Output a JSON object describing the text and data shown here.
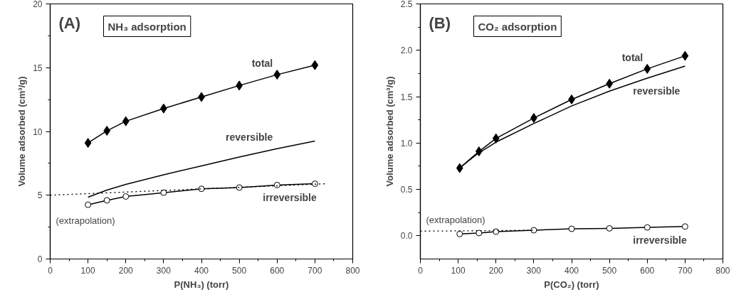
{
  "chart_data": [
    {
      "type": "line",
      "title": "(A)",
      "subtitle": "NH₃ adsorption",
      "xlabel": "P(NH₃) (torr)",
      "ylabel": "Volume adsorbed (cm³/g)",
      "xlim": [
        0,
        800
      ],
      "xticks": [
        0,
        100,
        200,
        300,
        400,
        500,
        600,
        700,
        800
      ],
      "ylim": [
        0,
        20
      ],
      "yticks": [
        0,
        5,
        10,
        15,
        20
      ],
      "grid": false,
      "series": [
        {
          "name": "total",
          "color": "#000000",
          "marker": "diamond",
          "x": [
            100,
            150,
            200,
            300,
            400,
            500,
            600,
            700
          ],
          "values": [
            9.1,
            10.05,
            10.8,
            11.8,
            12.7,
            13.6,
            14.45,
            15.2
          ]
        },
        {
          "name": "reversible",
          "color": "#000000",
          "marker": "none",
          "x": [
            100,
            150,
            200,
            300,
            400,
            500,
            600,
            700
          ],
          "values": [
            4.85,
            5.4,
            5.85,
            6.6,
            7.3,
            8.0,
            8.65,
            9.25
          ]
        },
        {
          "name": "irreversible",
          "color": "#000000",
          "marker": "circle",
          "x": [
            100,
            150,
            200,
            300,
            400,
            500,
            600,
            700
          ],
          "values": [
            4.25,
            4.6,
            4.9,
            5.2,
            5.5,
            5.6,
            5.8,
            5.9
          ]
        },
        {
          "color": "#000000",
          "marker": "none",
          "line_style": "dotted",
          "x": [
            0,
            730
          ],
          "values": [
            5.0,
            5.9
          ]
        }
      ],
      "annotations": [
        "(extrapolation)"
      ]
    },
    {
      "type": "line",
      "title": "(B)",
      "subtitle": "CO₂ adsorption",
      "xlabel": "P(CO₂) (torr)",
      "ylabel": "Volume adsorbed (cm³/g)",
      "xlim": [
        0,
        800
      ],
      "xticks": [
        0,
        100,
        200,
        300,
        400,
        500,
        600,
        700,
        800
      ],
      "ylim": [
        -0.25,
        2.5
      ],
      "yticks": [
        {
          "value": 0,
          "label": "0.0"
        },
        0.5,
        {
          "value": 1,
          "label": "1.0"
        },
        1.5,
        {
          "value": 2,
          "label": "2.0"
        },
        2.5
      ],
      "grid": false,
      "series": [
        {
          "name": "total",
          "color": "#000000",
          "marker": "diamond",
          "x": [
            104,
            155,
            200,
            300,
            400,
            500,
            600,
            700
          ],
          "values": [
            0.73,
            0.91,
            1.05,
            1.27,
            1.47,
            1.64,
            1.8,
            1.94
          ]
        },
        {
          "name": "reversible",
          "color": "#000000",
          "marker": "none",
          "x": [
            100,
            150,
            200,
            300,
            400,
            500,
            600,
            700
          ],
          "values": [
            0.72,
            0.88,
            1.01,
            1.21,
            1.4,
            1.56,
            1.7,
            1.83
          ]
        },
        {
          "name": "irreversible",
          "color": "#000000",
          "marker": "circle",
          "x": [
            104,
            155,
            200,
            300,
            400,
            500,
            600,
            700
          ],
          "values": [
            0.02,
            0.03,
            0.045,
            0.06,
            0.075,
            0.08,
            0.09,
            0.1
          ]
        },
        {
          "color": "#000000",
          "marker": "none",
          "line_style": "dotted",
          "x": [
            0,
            300
          ],
          "values": [
            0.05,
            0.06
          ]
        }
      ],
      "annotations": [
        "(extrapolation)"
      ]
    }
  ]
}
